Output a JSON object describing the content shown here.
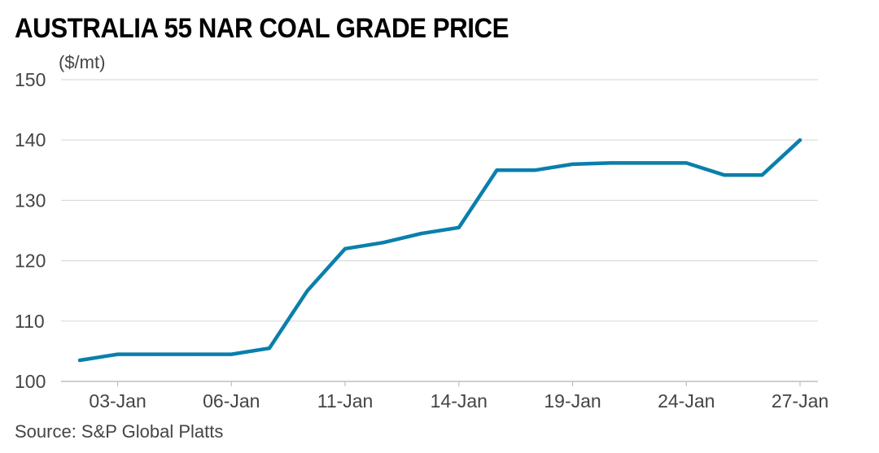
{
  "chart_data": {
    "type": "line",
    "title": "AUSTRALIA 55 NAR COAL GRADE PRICE",
    "ylabel": "($/mt)",
    "source": "Source: S&P Global Platts",
    "ylim": [
      100,
      150
    ],
    "yticks": [
      "150",
      "140",
      "130",
      "120",
      "110",
      "100"
    ],
    "ytick_values": [
      150,
      140,
      130,
      120,
      110,
      100
    ],
    "x": [
      "02-Jan",
      "03-Jan",
      "04-Jan",
      "05-Jan",
      "06-Jan",
      "07-Jan",
      "10-Jan",
      "11-Jan",
      "12-Jan",
      "13-Jan",
      "14-Jan",
      "17-Jan",
      "18-Jan",
      "19-Jan",
      "20-Jan",
      "21-Jan",
      "24-Jan",
      "25-Jan",
      "26-Jan",
      "27-Jan"
    ],
    "xticks": [
      "03-Jan",
      "06-Jan",
      "11-Jan",
      "14-Jan",
      "19-Jan",
      "24-Jan",
      "27-Jan"
    ],
    "xtick_index": [
      1,
      4,
      7,
      10,
      13,
      16,
      19
    ],
    "grid": true,
    "line_color": "#0a7fab",
    "series": [
      {
        "values": [
          103.5,
          104.5,
          104.5,
          104.5,
          104.5,
          105.5,
          115.0,
          122.0,
          123.0,
          124.5,
          125.5,
          135.0,
          135.0,
          136.0,
          136.2,
          136.2,
          136.2,
          134.2,
          134.2,
          140.0
        ]
      }
    ]
  }
}
